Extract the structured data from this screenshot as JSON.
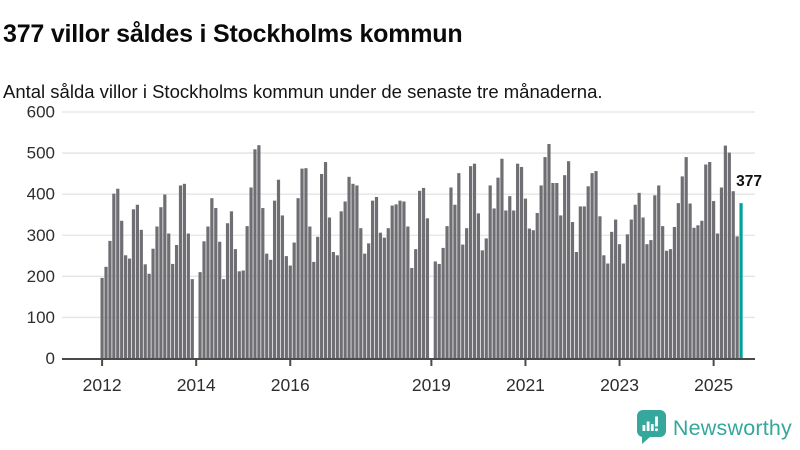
{
  "header": {
    "title": "377 villor såldes i Stockholms kommun",
    "subtitle": "Antal sålda villor i Stockholms kommun under de senaste tre månaderna."
  },
  "chart_data": {
    "type": "bar",
    "title": "377 villor såldes i Stockholms kommun",
    "subtitle": "Antal sålda villor i Stockholms kommun under de senaste tre månaderna.",
    "start_month": "2012-01",
    "frequency": "monthly",
    "ylim": [
      0,
      600
    ],
    "y_ticks": [
      0,
      100,
      200,
      300,
      400,
      500,
      600
    ],
    "x_tick_labels": [
      "2012",
      "2014",
      "2016",
      "2019",
      "2021",
      "2023",
      "2025"
    ],
    "x_tick_month_index": [
      0,
      24,
      48,
      84,
      108,
      132,
      156
    ],
    "grid": "horizontal",
    "bar_color": "#6e6e73",
    "highlight_color": "#00a39c",
    "axis_color": "#4a4a4a",
    "gridline_color": "#e4e4e4",
    "tick_label_color": "#2e2e2e",
    "highlight_label": "377",
    "highlight_value": 377,
    "values": [
      195,
      222,
      285,
      400,
      412,
      334,
      250,
      242,
      362,
      373,
      312,
      228,
      205,
      266,
      320,
      367,
      398,
      303,
      229,
      275,
      420,
      424,
      303,
      192,
      null,
      209,
      284,
      320,
      389,
      365,
      283,
      192,
      328,
      357,
      265,
      211,
      213,
      321,
      415,
      508,
      518,
      365,
      254,
      239,
      383,
      434,
      347,
      248,
      225,
      281,
      389,
      461,
      462,
      320,
      234,
      295,
      448,
      477,
      342,
      258,
      250,
      357,
      381,
      441,
      424,
      420,
      316,
      254,
      279,
      383,
      392,
      305,
      293,
      316,
      371,
      374,
      383,
      381,
      320,
      219,
      265,
      407,
      414,
      340,
      null,
      235,
      229,
      268,
      321,
      415,
      373,
      450,
      276,
      316,
      467,
      473,
      352,
      262,
      291,
      420,
      364,
      439,
      485,
      359,
      394,
      359,
      473,
      465,
      388,
      315,
      311,
      353,
      420,
      489,
      521,
      426,
      426,
      347,
      445,
      479,
      331,
      258,
      369,
      369,
      418,
      450,
      455,
      345,
      250,
      230,
      307,
      337,
      277,
      230,
      301,
      337,
      373,
      402,
      342,
      277,
      287,
      396,
      420,
      321,
      261,
      265,
      319,
      377,
      442,
      489,
      376,
      317,
      323,
      334,
      471,
      477,
      382,
      303,
      415,
      517,
      500,
      406,
      296,
      377
    ]
  },
  "footer": {
    "brand": "Newsworthy",
    "brand_color": "#35a79c"
  }
}
